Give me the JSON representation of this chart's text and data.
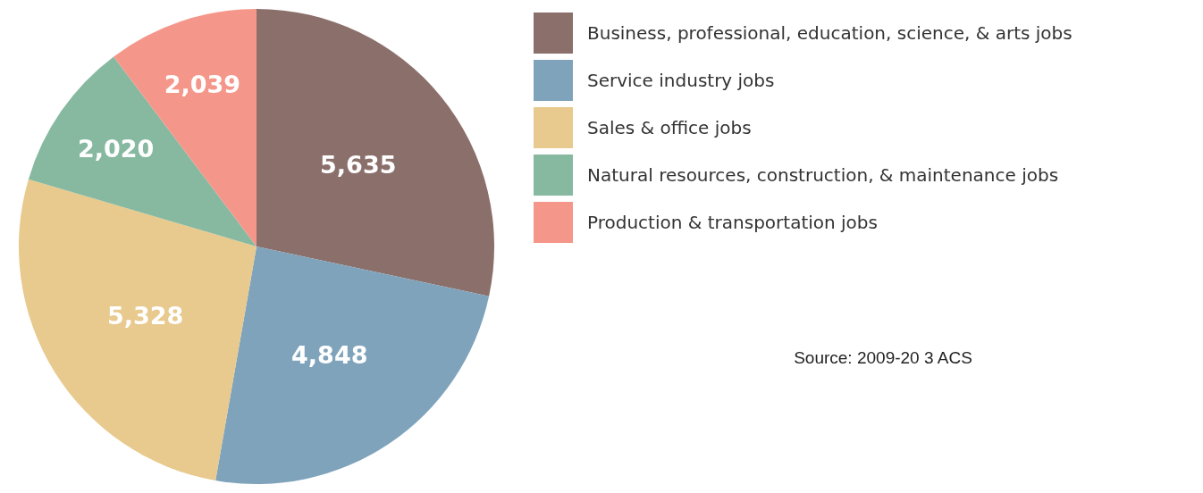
{
  "chart_data": {
    "type": "pie",
    "categories": [
      "Business, professional, education, science, & arts jobs",
      "Service industry jobs",
      "Sales & office jobs",
      "Natural resources, construction, & maintenance jobs",
      "Production & transportation jobs"
    ],
    "values": [
      5635,
      4848,
      5328,
      2020,
      2039
    ],
    "colors": [
      "#8b6f6b",
      "#7fa3bb",
      "#e8c98e",
      "#86b9a0",
      "#f4978a"
    ],
    "value_labels": [
      "5,635",
      "4,848",
      "5,328",
      "2,020",
      "2,039"
    ],
    "legend": "right",
    "annotations": [
      "Source: 2009-20 3 ACS"
    ]
  }
}
